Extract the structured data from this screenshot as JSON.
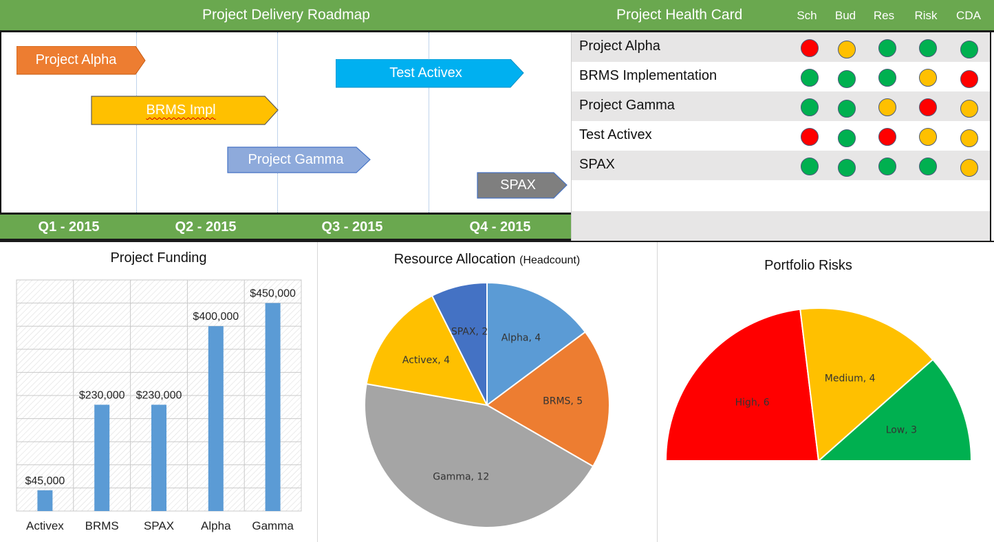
{
  "roadmap": {
    "title": "Project Delivery Roadmap",
    "quarters": [
      "Q1 - 2015",
      "Q2 - 2015",
      "Q3 - 2015",
      "Q4 - 2015"
    ],
    "bars": [
      {
        "label": "Project Alpha",
        "color": "#ed7d31"
      },
      {
        "label": "Test Activex",
        "color": "#00b0f0"
      },
      {
        "label": "BRMS Impl",
        "color": "#ffc000"
      },
      {
        "label": "Project Gamma",
        "color": "#8eaadb"
      },
      {
        "label": "SPAX",
        "color": "#7f7f7f"
      }
    ]
  },
  "health_card": {
    "title": "Project Health Card",
    "columns": [
      "Sch",
      "Bud",
      "Res",
      "Risk",
      "CDA"
    ],
    "rows": [
      {
        "name": "Project Alpha",
        "status": [
          "red",
          "yellow",
          "green",
          "green",
          "green"
        ]
      },
      {
        "name": "BRMS Implementation",
        "status": [
          "green",
          "green",
          "green",
          "yellow",
          "red"
        ]
      },
      {
        "name": "Project Gamma",
        "status": [
          "green",
          "green",
          "yellow",
          "red",
          "yellow"
        ]
      },
      {
        "name": "Test Activex",
        "status": [
          "red",
          "green",
          "red",
          "yellow",
          "yellow"
        ]
      },
      {
        "name": "SPAX",
        "status": [
          "green",
          "green",
          "green",
          "green",
          "yellow"
        ]
      }
    ],
    "status_colors": {
      "red": "#ff0000",
      "yellow": "#ffc000",
      "green": "#00b050"
    }
  },
  "chart_data": [
    {
      "type": "bar",
      "title": "Project Funding",
      "categories": [
        "Activex",
        "BRMS",
        "SPAX",
        "Alpha",
        "Gamma"
      ],
      "values": [
        45000,
        230000,
        230000,
        400000,
        450000
      ],
      "data_labels": [
        "$45,000",
        "$230,000",
        "$230,000",
        "$400,000",
        "$450,000"
      ],
      "ylim": [
        0,
        500000
      ],
      "grid": true,
      "color": "#5b9bd5"
    },
    {
      "type": "pie",
      "title": "Resource Allocation",
      "title_suffix": "(Headcount)",
      "slices": [
        {
          "label": "Alpha, 4",
          "value": 4,
          "color": "#5b9bd5"
        },
        {
          "label": "BRMS, 5",
          "value": 5,
          "color": "#ed7d31"
        },
        {
          "label": "Gamma, 12",
          "value": 12,
          "color": "#a5a5a5"
        },
        {
          "label": "Activex, 4",
          "value": 4,
          "color": "#ffc000"
        },
        {
          "label": "SPAX, 2",
          "value": 2,
          "color": "#4472c4"
        }
      ]
    },
    {
      "type": "pie",
      "title": "Portfolio Risks",
      "slices": [
        {
          "label": "High, 6",
          "value": 6,
          "color": "#ff0000"
        },
        {
          "label": "Medium, 4",
          "value": 4,
          "color": "#ffc000"
        },
        {
          "label": "Low, 3",
          "value": 3,
          "color": "#00b050"
        }
      ]
    }
  ]
}
